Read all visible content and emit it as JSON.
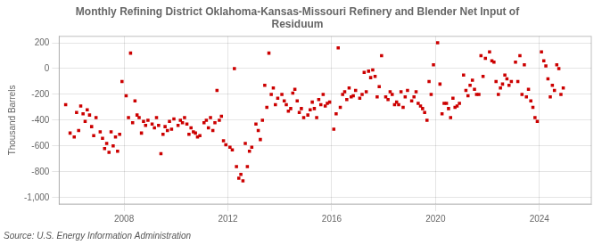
{
  "chart_data": {
    "type": "scatter",
    "title": "Monthly Refining District Oklahoma-Kansas-Missouri Refinery and Blender Net Input of\nResiduum",
    "ylabel": "Thousand Barrels",
    "source": "Source: U.S. Energy Information Administration",
    "color": "#cc0000",
    "marker": "square",
    "grid": true,
    "xlim": [
      2005.5,
      2026.0
    ],
    "xticks": [
      2008,
      2012,
      2016,
      2020,
      2024
    ],
    "ylim": [
      -1050,
      250
    ],
    "yticks": [
      {
        "value": -1000,
        "label": "-1,000"
      },
      -800,
      -600,
      -400,
      -200,
      0,
      200
    ],
    "x": [
      2005.75,
      2005.92,
      2006.08,
      2006.25,
      2006.42,
      2006.58,
      2006.75,
      2006.92,
      2007.08,
      2007.25,
      2007.42,
      2007.58,
      2007.75,
      2007.92,
      2008.08,
      2008.25,
      2008.42,
      2008.58,
      2008.75,
      2008.92,
      2009.08,
      2009.25,
      2009.42,
      2009.58,
      2009.75,
      2009.92,
      2010.08,
      2010.25,
      2010.42,
      2010.58,
      2010.75,
      2010.92,
      2011.08,
      2011.25,
      2011.42,
      2011.58,
      2011.75,
      2011.92,
      2012.08,
      2012.25,
      2012.42,
      2012.58,
      2012.75,
      2012.92,
      2013.08,
      2013.25,
      2013.42,
      2013.58,
      2013.75,
      2013.92,
      2014.08,
      2014.25,
      2014.42,
      2014.58,
      2014.75,
      2014.92,
      2015.08,
      2015.25,
      2015.42,
      2015.58,
      2015.75,
      2015.92,
      2016.08,
      2016.25,
      2016.42,
      2016.58,
      2016.75,
      2016.92,
      2017.08,
      2017.25,
      2017.42,
      2017.58,
      2017.75,
      2017.92,
      2018.08,
      2018.25,
      2018.42,
      2018.58,
      2018.75,
      2018.92,
      2019.08,
      2019.25,
      2019.42,
      2019.58,
      2019.75,
      2019.92,
      2020.08,
      2020.25,
      2020.42,
      2020.58,
      2020.75,
      2020.92,
      2021.08,
      2021.25,
      2021.42,
      2021.58,
      2021.75,
      2021.92,
      2022.08,
      2022.25,
      2022.42,
      2022.58,
      2022.75,
      2022.92,
      2023.08,
      2023.25,
      2023.42,
      2023.58,
      2023.75,
      2023.92,
      2024.08,
      2024.25,
      2024.42,
      2024.58,
      2024.75,
      2024.92,
      2006.17,
      2006.33,
      2006.5,
      2006.67,
      2006.83,
      2007.17,
      2007.33,
      2007.5,
      2007.67,
      2007.83,
      2008.17,
      2008.33,
      2008.5,
      2008.67,
      2008.83,
      2009.17,
      2009.33,
      2009.5,
      2009.67,
      2009.83,
      2010.17,
      2010.33,
      2010.5,
      2010.67,
      2010.83,
      2011.17,
      2011.33,
      2011.5,
      2011.67,
      2011.83,
      2012.17,
      2012.33,
      2012.5,
      2012.67,
      2012.83,
      2013.17,
      2013.33,
      2013.5,
      2013.67,
      2013.83,
      2014.17,
      2014.33,
      2014.5,
      2014.67,
      2014.83,
      2015.17,
      2015.33,
      2015.5,
      2015.67,
      2015.83,
      2016.17,
      2016.33,
      2016.5,
      2016.67,
      2016.83,
      2017.17,
      2017.33,
      2017.5,
      2017.67,
      2017.83,
      2018.17,
      2018.33,
      2018.5,
      2018.67,
      2018.83,
      2019.17,
      2019.33,
      2019.5,
      2019.67,
      2019.83,
      2020.17,
      2020.33,
      2020.5,
      2020.67,
      2020.83,
      2021.17,
      2021.33,
      2021.5,
      2021.67,
      2021.83,
      2022.17,
      2022.33,
      2022.5,
      2022.67,
      2022.83,
      2023.17,
      2023.33,
      2023.5,
      2023.67,
      2023.83,
      2024.17,
      2024.33,
      2024.5,
      2024.67,
      2024.83
    ],
    "values": [
      -280,
      -500,
      -530,
      -480,
      -350,
      -320,
      -450,
      -380,
      -490,
      -620,
      -650,
      -600,
      -640,
      -100,
      -210,
      120,
      -250,
      -380,
      -410,
      -400,
      -430,
      -380,
      -660,
      -450,
      -410,
      -390,
      -440,
      -420,
      -430,
      -460,
      -500,
      -520,
      -420,
      -460,
      -480,
      -170,
      -370,
      -590,
      -610,
      0,
      -850,
      -870,
      -760,
      -610,
      -430,
      -550,
      -130,
      120,
      -150,
      -230,
      -200,
      -280,
      -310,
      -160,
      -340,
      -380,
      -360,
      -260,
      -380,
      -280,
      -290,
      -260,
      -470,
      160,
      -200,
      -240,
      -220,
      -170,
      -230,
      -30,
      -20,
      -10,
      -220,
      100,
      -220,
      -180,
      -280,
      -280,
      -300,
      -170,
      -250,
      -180,
      -290,
      -340,
      -100,
      30,
      200,
      -350,
      -270,
      -380,
      -300,
      -270,
      -50,
      -210,
      -90,
      -200,
      100,
      80,
      130,
      50,
      -200,
      -120,
      -80,
      -100,
      50,
      100,
      30,
      -160,
      -300,
      -410,
      130,
      20,
      -220,
      -170,
      0,
      -150,
      -340,
      -290,
      -410,
      -360,
      -520,
      -540,
      -580,
      -490,
      -530,
      -510,
      -380,
      -420,
      -360,
      -500,
      -440,
      -460,
      -440,
      -510,
      -480,
      -470,
      -400,
      -380,
      -510,
      -490,
      -530,
      -400,
      -380,
      -420,
      -400,
      -560,
      -630,
      -760,
      -820,
      -580,
      -640,
      -480,
      -400,
      -300,
      -200,
      -280,
      -250,
      -330,
      -190,
      -250,
      -310,
      -320,
      -310,
      -240,
      -200,
      -270,
      -350,
      -300,
      -180,
      -150,
      -210,
      -200,
      -180,
      -70,
      -60,
      -140,
      -240,
      -200,
      -260,
      -180,
      -220,
      -220,
      -270,
      -310,
      -400,
      -200,
      -120,
      -270,
      -310,
      -230,
      -290,
      -170,
      -130,
      -160,
      -200,
      -60,
      60,
      -100,
      -150,
      -50,
      -130,
      -100,
      -200,
      -220,
      -250,
      -380,
      60,
      -80,
      -130,
      30,
      -200
    ]
  }
}
